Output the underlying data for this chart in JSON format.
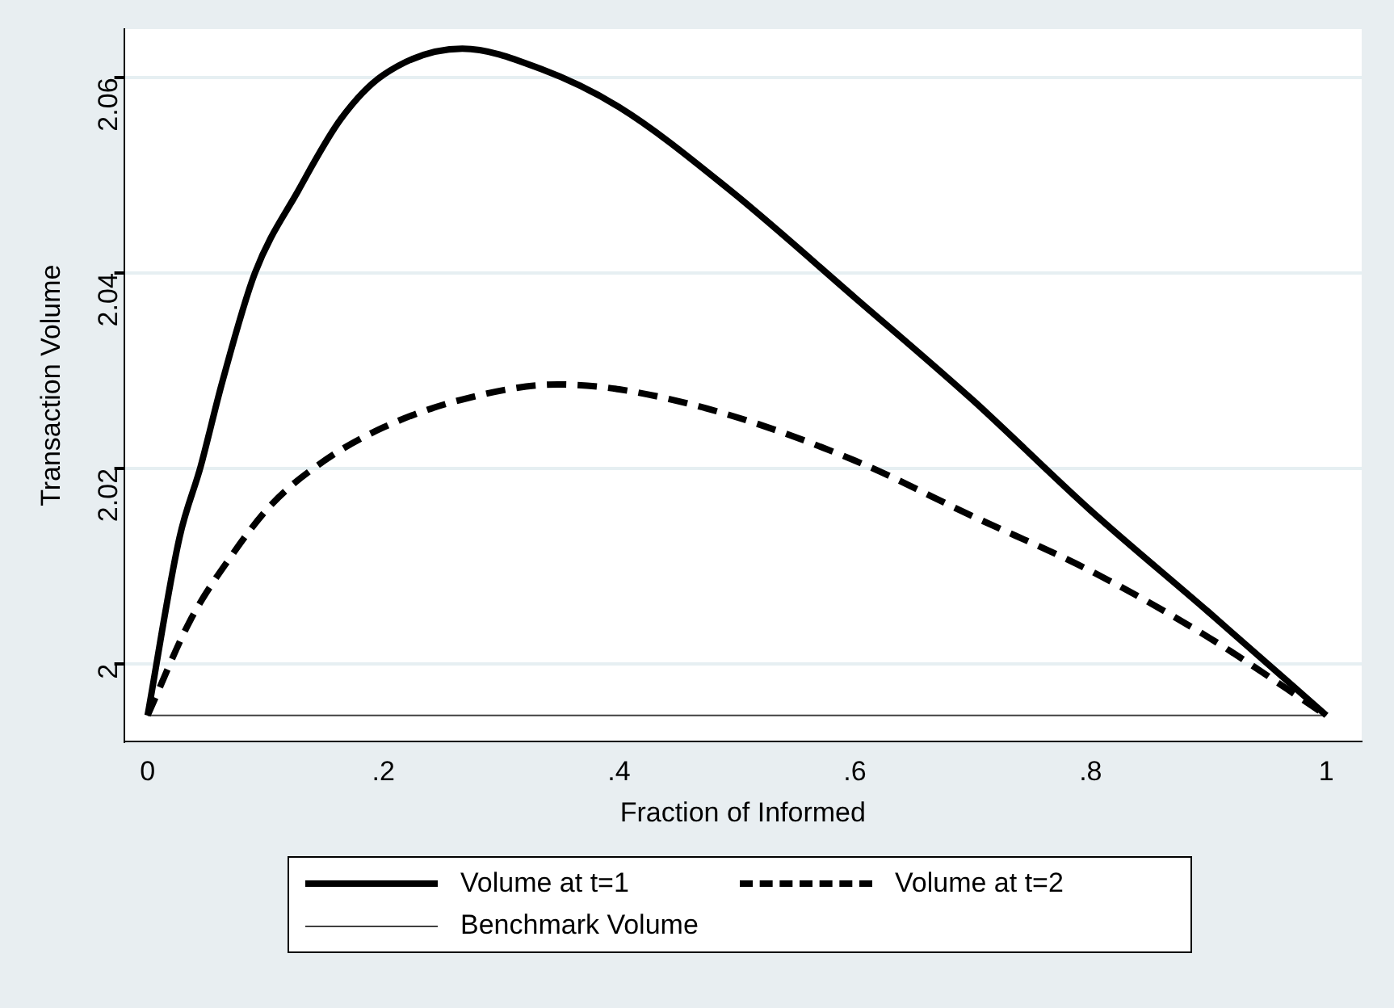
{
  "chart_data": {
    "type": "line",
    "xlabel": "Fraction of Informed",
    "ylabel": "Transaction Volume",
    "xlim": [
      -0.02,
      1.03
    ],
    "xticks": [
      {
        "value": 0,
        "label": "0"
      },
      {
        "value": 0.2,
        "label": ".2"
      },
      {
        "value": 0.4,
        "label": ".4"
      },
      {
        "value": 0.6,
        "label": ".6"
      },
      {
        "value": 0.8,
        "label": ".8"
      },
      {
        "value": 1,
        "label": "1"
      }
    ],
    "ylim": [
      1.992,
      2.065
    ],
    "yticks": [
      2,
      2.02,
      2.04,
      2.06
    ],
    "grid": "y",
    "legend": "bottom",
    "marker": "none",
    "series": [
      {
        "name": "Volume at t=1",
        "color": "#000000",
        "line_style": "solid",
        "x": [
          0,
          0.027,
          0.045,
          0.063,
          0.091,
          0.128,
          0.164,
          0.2,
          0.267,
          0.334,
          0.4,
          0.494,
          0.6,
          0.7,
          0.8,
          0.9,
          1
        ],
        "values": [
          1.9947,
          2.0129,
          2.0202,
          2.0287,
          2.04,
          2.0485,
          2.0558,
          2.0603,
          2.063,
          2.0609,
          2.057,
          2.0485,
          2.0375,
          2.027,
          2.0157,
          2.0053,
          1.9947
        ]
      },
      {
        "name": "Volume at t=2",
        "color": "#000000",
        "line_style": "dashed",
        "x": [
          0,
          0.036,
          0.072,
          0.105,
          0.15,
          0.2,
          0.265,
          0.348,
          0.4,
          0.49,
          0.6,
          0.7,
          0.8,
          0.9,
          1
        ],
        "values": [
          1.9947,
          2.0044,
          2.0112,
          2.0163,
          2.0208,
          2.0242,
          2.027,
          2.0286,
          2.0281,
          2.0256,
          2.0208,
          2.0151,
          2.0095,
          2.0027,
          1.9947
        ]
      },
      {
        "name": "Benchmark Volume",
        "color": "#404040",
        "line_style": "solid",
        "x": [
          0,
          1
        ],
        "values": [
          1.9947,
          1.9947
        ]
      }
    ]
  }
}
